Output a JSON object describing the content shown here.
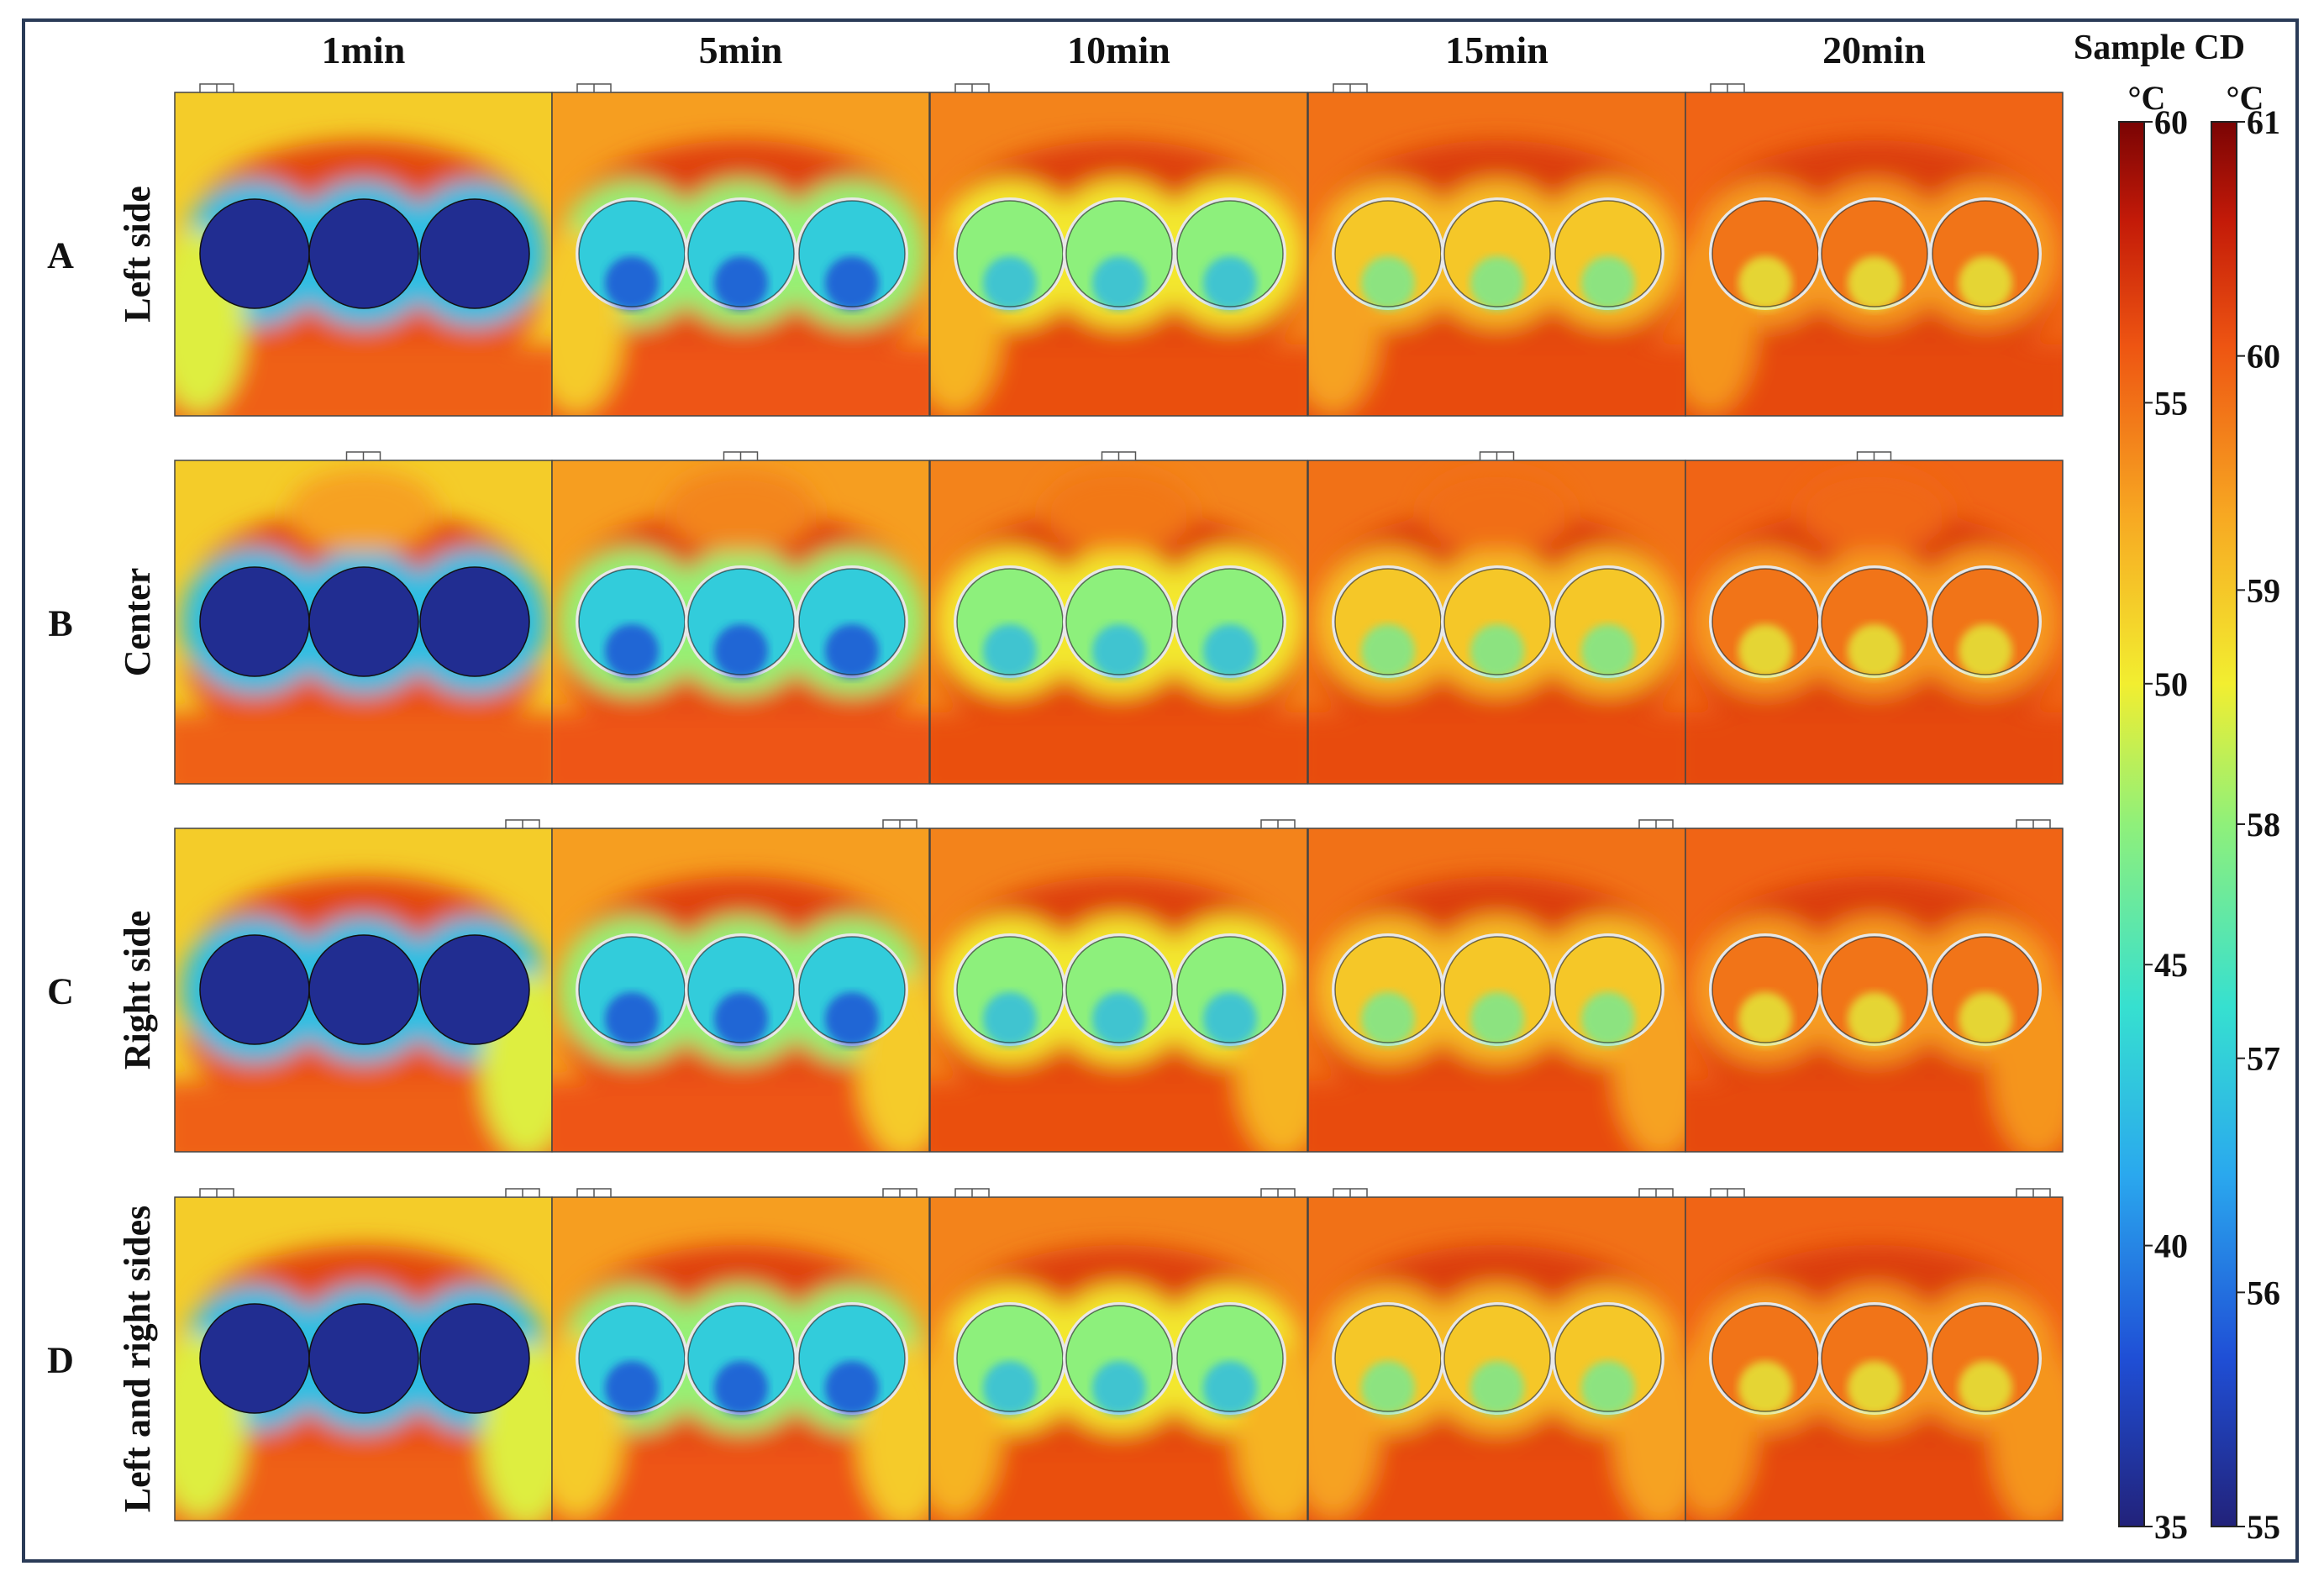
{
  "figure": {
    "columns": [
      "1min",
      "5min",
      "10min",
      "15min",
      "20min"
    ],
    "rows": [
      {
        "letter": "A",
        "label": "Left side",
        "inlets": [
          "left"
        ]
      },
      {
        "letter": "B",
        "label": "Center",
        "inlets": [
          "center"
        ]
      },
      {
        "letter": "C",
        "label": "Right side",
        "inlets": [
          "right"
        ]
      },
      {
        "letter": "D",
        "label": "Left and right sides",
        "inlets": [
          "left",
          "right"
        ]
      }
    ],
    "sample_progress_by_column": [
      0.0,
      0.35,
      0.55,
      0.75,
      0.9
    ],
    "air_progress_by_column": [
      0.55,
      0.75,
      0.85,
      0.92,
      0.97
    ]
  },
  "colorbars": {
    "header": "Sample CD",
    "air": {
      "unit": "°C",
      "min": 35,
      "max": 60,
      "ticks": [
        "60",
        "55",
        "50",
        "45",
        "40",
        "35"
      ]
    },
    "sample": {
      "unit": "°C",
      "min": 55,
      "max": 61,
      "ticks": [
        "61",
        "60",
        "59",
        "58",
        "57",
        "56",
        "55"
      ]
    }
  },
  "colors": {
    "frame": "#2a3b57",
    "cold": "#1a2a8a",
    "hot": "#e85a10",
    "scale": [
      "#22227a",
      "#1f4fd6",
      "#2aa8ee",
      "#36e0d0",
      "#8ff07a",
      "#f2ee30",
      "#f7a822",
      "#ee5512",
      "#c31a08",
      "#7a0404"
    ]
  }
}
